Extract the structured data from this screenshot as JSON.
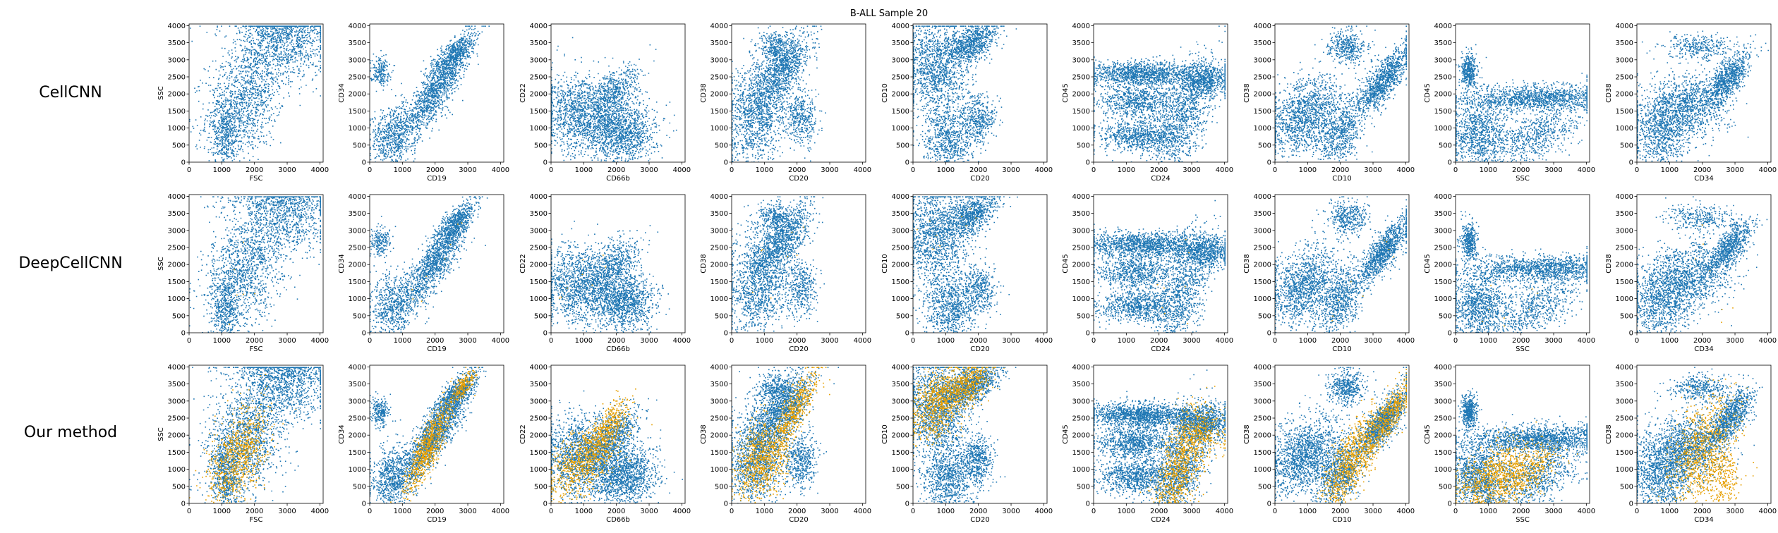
{
  "figure": {
    "title": "B-ALL Sample 20",
    "colors": {
      "blue": "#1f77b4",
      "orange": "#e69f00"
    }
  },
  "rows": [
    {
      "label": "CellCNN",
      "highlight": "none"
    },
    {
      "label": "DeepCellCNN",
      "highlight": "sparse"
    },
    {
      "label": "Our method",
      "highlight": "dense"
    }
  ],
  "chart_data": {
    "type": "scatter",
    "grid": "off",
    "xlim": [
      0,
      4100
    ],
    "ylim": [
      0,
      4050
    ],
    "xticks": [
      0,
      1000,
      2000,
      3000,
      4000
    ],
    "yticks": [
      0,
      500,
      1000,
      1500,
      2000,
      2500,
      3000,
      3500,
      4000
    ],
    "panels": [
      {
        "xlabel": "FSC",
        "ylabel": "SSC"
      },
      {
        "xlabel": "CD19",
        "ylabel": "CD34"
      },
      {
        "xlabel": "CD66b",
        "ylabel": "CD22"
      },
      {
        "xlabel": "CD20",
        "ylabel": "CD38"
      },
      {
        "xlabel": "CD20",
        "ylabel": "CD10"
      },
      {
        "xlabel": "CD24",
        "ylabel": "CD45"
      },
      {
        "xlabel": "CD10",
        "ylabel": "CD38"
      },
      {
        "xlabel": "SSC",
        "ylabel": "CD45"
      },
      {
        "xlabel": "CD34",
        "ylabel": "CD38"
      }
    ],
    "clusters": [
      {
        "blue": [
          [
            1700,
            1900,
            600,
            900,
            0.3,
            1
          ],
          [
            3000,
            3400,
            600,
            500,
            0,
            0.5
          ],
          [
            1100,
            800,
            200,
            500,
            0,
            0.3
          ],
          [
            2800,
            3900,
            900,
            200,
            0,
            0.3
          ]
        ],
        "orange": [
          [
            1500,
            1400,
            450,
            700,
            0.5,
            1
          ]
        ]
      },
      {
        "blue": [
          [
            2000,
            2100,
            500,
            700,
            0.85,
            1
          ],
          [
            700,
            800,
            350,
            450,
            0.2,
            0.5
          ],
          [
            2600,
            3200,
            300,
            300,
            0.7,
            0.4
          ],
          [
            300,
            2700,
            150,
            200,
            0,
            0.15
          ]
        ],
        "orange": [
          [
            1800,
            1700,
            350,
            650,
            0.85,
            1
          ],
          [
            2800,
            3400,
            200,
            250,
            0.8,
            0.3
          ]
        ]
      },
      {
        "blue": [
          [
            900,
            1400,
            600,
            600,
            0,
            1
          ],
          [
            2200,
            900,
            500,
            450,
            0,
            0.9
          ],
          [
            1900,
            2000,
            400,
            400,
            0.6,
            0.4
          ]
        ],
        "orange": [
          [
            1000,
            1300,
            550,
            550,
            0.6,
            1
          ],
          [
            1800,
            2300,
            300,
            400,
            0.7,
            0.4
          ]
        ]
      },
      {
        "blue": [
          [
            800,
            1500,
            450,
            800,
            0.2,
            1
          ],
          [
            1600,
            2800,
            400,
            500,
            0.6,
            0.7
          ],
          [
            1300,
            3400,
            250,
            200,
            0,
            0.2
          ],
          [
            2100,
            1300,
            250,
            400,
            0,
            0.3
          ]
        ],
        "orange": [
          [
            900,
            1300,
            400,
            600,
            0.3,
            1
          ],
          [
            1900,
            2700,
            350,
            600,
            0.8,
            0.6
          ]
        ]
      },
      {
        "blue": [
          [
            700,
            2800,
            500,
            700,
            0,
            1
          ],
          [
            1800,
            3500,
            400,
            300,
            0.5,
            0.6
          ],
          [
            1100,
            700,
            400,
            500,
            0,
            0.6
          ],
          [
            2000,
            1300,
            250,
            350,
            0,
            0.3
          ]
        ],
        "orange": [
          [
            800,
            3000,
            450,
            500,
            0.4,
            1
          ],
          [
            1700,
            3500,
            350,
            300,
            0.5,
            0.5
          ]
        ]
      },
      {
        "blue": [
          [
            1500,
            2600,
            900,
            180,
            0,
            1
          ],
          [
            1300,
            1800,
            600,
            250,
            0,
            0.6
          ],
          [
            1300,
            800,
            600,
            250,
            0,
            0.6
          ],
          [
            2700,
            1200,
            450,
            900,
            0.6,
            0.8
          ],
          [
            3400,
            2400,
            400,
            250,
            0,
            0.5
          ]
        ],
        "orange": [
          [
            2600,
            1000,
            400,
            800,
            0.6,
            1
          ],
          [
            3300,
            2100,
            350,
            300,
            0,
            0.4
          ]
        ]
      },
      {
        "blue": [
          [
            900,
            1400,
            550,
            550,
            0.3,
            1
          ],
          [
            2200,
            3400,
            300,
            250,
            0,
            0.3
          ],
          [
            3300,
            2400,
            400,
            500,
            0.8,
            0.8
          ],
          [
            2000,
            900,
            350,
            500,
            0.4,
            0.5
          ]
        ],
        "orange": [
          [
            2300,
            1200,
            400,
            700,
            0.7,
            1
          ],
          [
            3400,
            2500,
            350,
            500,
            0.8,
            0.7
          ]
        ]
      },
      {
        "blue": [
          [
            2600,
            1900,
            1100,
            200,
            0.1,
            1
          ],
          [
            700,
            800,
            450,
            550,
            0,
            0.8
          ],
          [
            400,
            2700,
            120,
            250,
            0,
            0.3
          ],
          [
            2500,
            800,
            700,
            500,
            0.6,
            0.5
          ]
        ],
        "orange": [
          [
            1200,
            800,
            600,
            500,
            0.5,
            1
          ],
          [
            2200,
            900,
            500,
            450,
            0.5,
            0.4
          ]
        ]
      },
      {
        "blue": [
          [
            1400,
            1600,
            700,
            500,
            0.2,
            1
          ],
          [
            1900,
            3400,
            500,
            200,
            0,
            0.25
          ],
          [
            2800,
            2500,
            350,
            400,
            0.7,
            0.6
          ],
          [
            700,
            800,
            450,
            500,
            0,
            0.5
          ]
        ],
        "orange": [
          [
            2000,
            1600,
            500,
            800,
            0.5,
            1
          ],
          [
            2600,
            800,
            300,
            400,
            0,
            0.3
          ]
        ]
      }
    ]
  }
}
